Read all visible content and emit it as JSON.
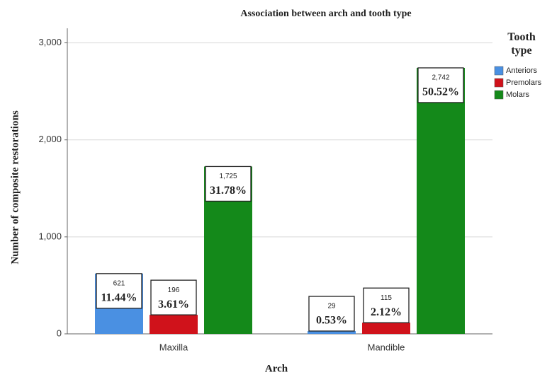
{
  "chart_data": {
    "type": "bar",
    "title": "Association between arch and tooth type",
    "x_label": "Arch",
    "y_label": "Number of composite restorations",
    "legend_title": "Tooth type",
    "legend_position": "right",
    "categories": [
      "Maxilla",
      "Mandible"
    ],
    "series": [
      {
        "name": "Anteriors",
        "color": "#4a90e2",
        "values": [
          621,
          29
        ],
        "value_labels": [
          "621",
          "29"
        ],
        "percent_labels": [
          "11.44%",
          "0.53%"
        ]
      },
      {
        "name": "Premolars",
        "color": "#d0121b",
        "values": [
          196,
          115
        ],
        "value_labels": [
          "196",
          "115"
        ],
        "percent_labels": [
          "3.61%",
          "2.12%"
        ]
      },
      {
        "name": "Molars",
        "color": "#14891a",
        "values": [
          1725,
          2742
        ],
        "value_labels": [
          "1,725",
          "2,742"
        ],
        "percent_labels": [
          "31.78%",
          "50.52%"
        ]
      }
    ],
    "ylim": [
      0,
      3150
    ],
    "yticks": [
      0,
      {
        "value": 1000,
        "label": "1,000"
      },
      {
        "value": 2000,
        "label": "2,000"
      },
      {
        "value": 3000,
        "label": "3,000"
      }
    ],
    "grid": true
  }
}
